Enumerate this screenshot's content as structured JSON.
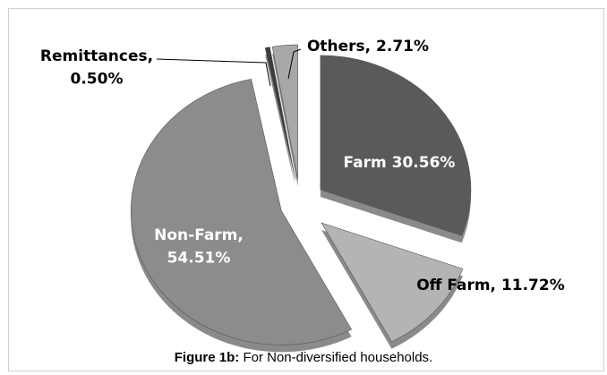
{
  "chart_data": {
    "type": "pie",
    "values": [
      30.56,
      11.72,
      54.51,
      0.5,
      2.71
    ],
    "value_labels": [
      "Farm 30.56%",
      "Off Farm, 11.72%",
      "Non-Farm,\n54.51%",
      "Remittances,\n0.50%",
      "Others, 2.71%"
    ],
    "colors": [
      "#5a5a5a",
      "#b4b4b4",
      "#8c8c8c",
      "#3c3c3c",
      "#a8a8a8"
    ],
    "caption_label": "Figure 1b:",
    "caption_text": " For Non-diversified households."
  }
}
